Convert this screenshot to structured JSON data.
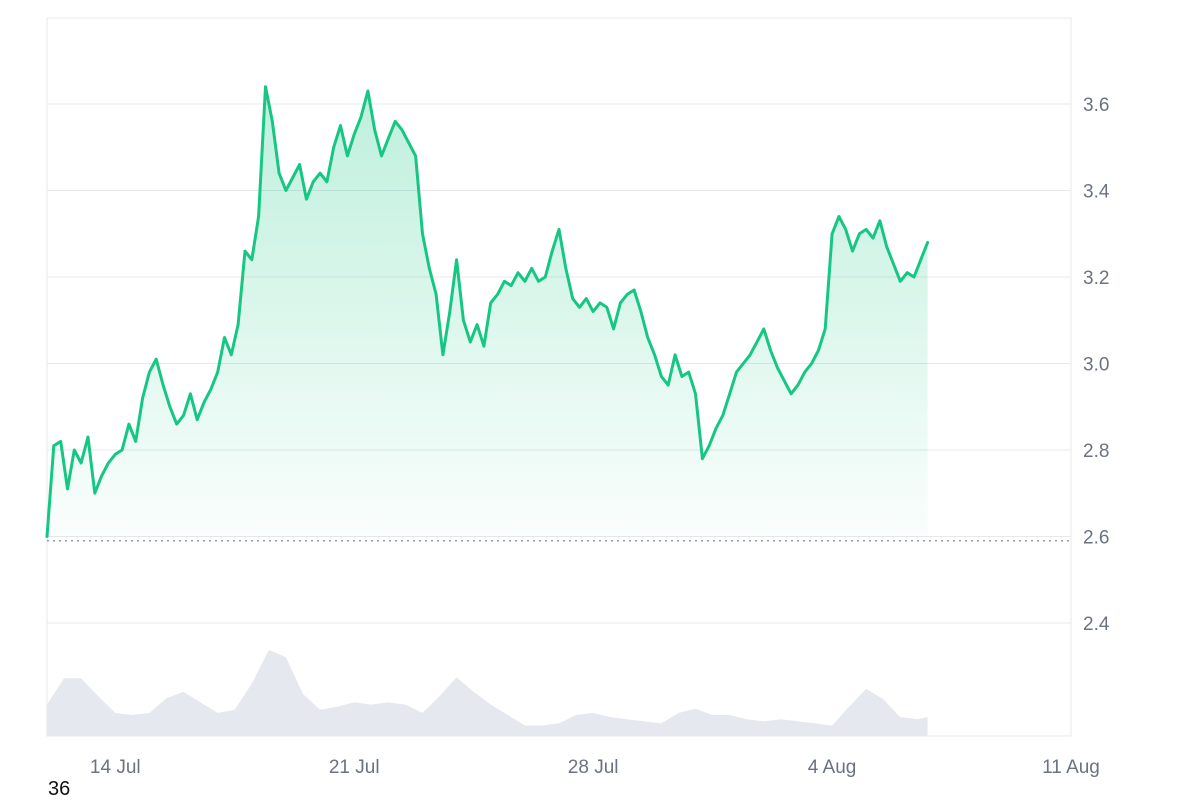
{
  "chart_data": {
    "type": "area",
    "title": "",
    "xlabel": "",
    "ylabel": "",
    "x_range": [
      "12 Jul",
      "11 Aug"
    ],
    "ylim": [
      2.2,
      3.8
    ],
    "y_ticks": [
      "2.4",
      "2.6",
      "2.8",
      "3.0",
      "3.2",
      "3.4",
      "3.6"
    ],
    "x_ticks": [
      {
        "label": "14 Jul",
        "day": 2
      },
      {
        "label": "21 Jul",
        "day": 9
      },
      {
        "label": "28 Jul",
        "day": 16
      },
      {
        "label": "4 Aug",
        "day": 23
      },
      {
        "label": "11 Aug",
        "day": 30
      }
    ],
    "baseline": 2.59,
    "grid": true,
    "legend": "none",
    "colors": {
      "line": "#16c784",
      "fill": "#16c784",
      "volume": "#e5e9ef",
      "grid": "#e6e8eb",
      "tick": "#6b7280"
    },
    "series": [
      {
        "points": [
          [
            0.0,
            2.6
          ],
          [
            0.2,
            2.81
          ],
          [
            0.4,
            2.82
          ],
          [
            0.6,
            2.71
          ],
          [
            0.8,
            2.8
          ],
          [
            1.0,
            2.77
          ],
          [
            1.2,
            2.83
          ],
          [
            1.4,
            2.7
          ],
          [
            1.6,
            2.74
          ],
          [
            1.8,
            2.77
          ],
          [
            2.0,
            2.79
          ],
          [
            2.2,
            2.8
          ],
          [
            2.4,
            2.86
          ],
          [
            2.6,
            2.82
          ],
          [
            2.8,
            2.92
          ],
          [
            3.0,
            2.98
          ],
          [
            3.2,
            3.01
          ],
          [
            3.4,
            2.95
          ],
          [
            3.6,
            2.9
          ],
          [
            3.8,
            2.86
          ],
          [
            4.0,
            2.88
          ],
          [
            4.2,
            2.93
          ],
          [
            4.4,
            2.87
          ],
          [
            4.6,
            2.91
          ],
          [
            4.8,
            2.94
          ],
          [
            5.0,
            2.98
          ],
          [
            5.2,
            3.06
          ],
          [
            5.4,
            3.02
          ],
          [
            5.6,
            3.09
          ],
          [
            5.8,
            3.26
          ],
          [
            6.0,
            3.24
          ],
          [
            6.2,
            3.34
          ],
          [
            6.4,
            3.64
          ],
          [
            6.6,
            3.56
          ],
          [
            6.8,
            3.44
          ],
          [
            7.0,
            3.4
          ],
          [
            7.2,
            3.43
          ],
          [
            7.4,
            3.46
          ],
          [
            7.6,
            3.38
          ],
          [
            7.8,
            3.42
          ],
          [
            8.0,
            3.44
          ],
          [
            8.2,
            3.42
          ],
          [
            8.4,
            3.5
          ],
          [
            8.6,
            3.55
          ],
          [
            8.8,
            3.48
          ],
          [
            9.0,
            3.53
          ],
          [
            9.2,
            3.57
          ],
          [
            9.4,
            3.63
          ],
          [
            9.6,
            3.54
          ],
          [
            9.8,
            3.48
          ],
          [
            10.0,
            3.52
          ],
          [
            10.2,
            3.56
          ],
          [
            10.4,
            3.54
          ],
          [
            10.6,
            3.51
          ],
          [
            10.8,
            3.48
          ],
          [
            11.0,
            3.3
          ],
          [
            11.2,
            3.22
          ],
          [
            11.4,
            3.16
          ],
          [
            11.6,
            3.02
          ],
          [
            11.8,
            3.12
          ],
          [
            12.0,
            3.24
          ],
          [
            12.2,
            3.1
          ],
          [
            12.4,
            3.05
          ],
          [
            12.6,
            3.09
          ],
          [
            12.8,
            3.04
          ],
          [
            13.0,
            3.14
          ],
          [
            13.2,
            3.16
          ],
          [
            13.4,
            3.19
          ],
          [
            13.6,
            3.18
          ],
          [
            13.8,
            3.21
          ],
          [
            14.0,
            3.19
          ],
          [
            14.2,
            3.22
          ],
          [
            14.4,
            3.19
          ],
          [
            14.6,
            3.2
          ],
          [
            14.8,
            3.26
          ],
          [
            15.0,
            3.31
          ],
          [
            15.2,
            3.22
          ],
          [
            15.4,
            3.15
          ],
          [
            15.6,
            3.13
          ],
          [
            15.8,
            3.15
          ],
          [
            16.0,
            3.12
          ],
          [
            16.2,
            3.14
          ],
          [
            16.4,
            3.13
          ],
          [
            16.6,
            3.08
          ],
          [
            16.8,
            3.14
          ],
          [
            17.0,
            3.16
          ],
          [
            17.2,
            3.17
          ],
          [
            17.4,
            3.12
          ],
          [
            17.6,
            3.06
          ],
          [
            17.8,
            3.02
          ],
          [
            18.0,
            2.97
          ],
          [
            18.2,
            2.95
          ],
          [
            18.4,
            3.02
          ],
          [
            18.6,
            2.97
          ],
          [
            18.8,
            2.98
          ],
          [
            19.0,
            2.93
          ],
          [
            19.2,
            2.78
          ],
          [
            19.4,
            2.81
          ],
          [
            19.6,
            2.85
          ],
          [
            19.8,
            2.88
          ],
          [
            20.0,
            2.93
          ],
          [
            20.2,
            2.98
          ],
          [
            20.4,
            3.0
          ],
          [
            20.6,
            3.02
          ],
          [
            20.8,
            3.05
          ],
          [
            21.0,
            3.08
          ],
          [
            21.2,
            3.03
          ],
          [
            21.4,
            2.99
          ],
          [
            21.6,
            2.96
          ],
          [
            21.8,
            2.93
          ],
          [
            22.0,
            2.95
          ],
          [
            22.2,
            2.98
          ],
          [
            22.4,
            3.0
          ],
          [
            22.6,
            3.03
          ],
          [
            22.8,
            3.08
          ],
          [
            23.0,
            3.3
          ],
          [
            23.2,
            3.34
          ],
          [
            23.4,
            3.31
          ],
          [
            23.6,
            3.26
          ],
          [
            23.8,
            3.3
          ],
          [
            24.0,
            3.31
          ],
          [
            24.2,
            3.29
          ],
          [
            24.4,
            3.33
          ],
          [
            24.6,
            3.27
          ],
          [
            24.8,
            3.23
          ],
          [
            25.0,
            3.19
          ],
          [
            25.2,
            3.21
          ],
          [
            25.4,
            3.2
          ],
          [
            25.6,
            3.24
          ],
          [
            25.8,
            3.28
          ]
        ]
      }
    ],
    "volume": [
      [
        0.0,
        0.3
      ],
      [
        0.5,
        0.55
      ],
      [
        1.0,
        0.55
      ],
      [
        1.5,
        0.38
      ],
      [
        2.0,
        0.22
      ],
      [
        2.5,
        0.2
      ],
      [
        3.0,
        0.22
      ],
      [
        3.5,
        0.36
      ],
      [
        4.0,
        0.42
      ],
      [
        4.5,
        0.32
      ],
      [
        5.0,
        0.22
      ],
      [
        5.5,
        0.25
      ],
      [
        6.0,
        0.5
      ],
      [
        6.5,
        0.82
      ],
      [
        7.0,
        0.75
      ],
      [
        7.5,
        0.4
      ],
      [
        8.0,
        0.25
      ],
      [
        8.5,
        0.28
      ],
      [
        9.0,
        0.32
      ],
      [
        9.5,
        0.3
      ],
      [
        10.0,
        0.32
      ],
      [
        10.5,
        0.3
      ],
      [
        11.0,
        0.22
      ],
      [
        11.5,
        0.38
      ],
      [
        12.0,
        0.56
      ],
      [
        12.5,
        0.42
      ],
      [
        13.0,
        0.3
      ],
      [
        13.5,
        0.2
      ],
      [
        14.0,
        0.1
      ],
      [
        14.5,
        0.1
      ],
      [
        15.0,
        0.12
      ],
      [
        15.5,
        0.2
      ],
      [
        16.0,
        0.22
      ],
      [
        16.5,
        0.18
      ],
      [
        17.0,
        0.16
      ],
      [
        17.5,
        0.14
      ],
      [
        18.0,
        0.12
      ],
      [
        18.5,
        0.22
      ],
      [
        19.0,
        0.26
      ],
      [
        19.5,
        0.2
      ],
      [
        20.0,
        0.2
      ],
      [
        20.5,
        0.16
      ],
      [
        21.0,
        0.14
      ],
      [
        21.5,
        0.16
      ],
      [
        22.0,
        0.14
      ],
      [
        22.5,
        0.12
      ],
      [
        23.0,
        0.1
      ],
      [
        23.5,
        0.28
      ],
      [
        24.0,
        0.45
      ],
      [
        24.5,
        0.35
      ],
      [
        25.0,
        0.18
      ],
      [
        25.5,
        0.16
      ],
      [
        25.8,
        0.18
      ]
    ]
  },
  "footer": {
    "corner_label": "36"
  }
}
